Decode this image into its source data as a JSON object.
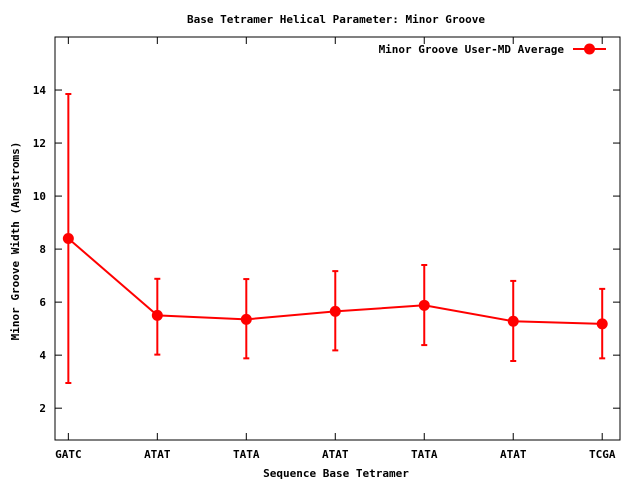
{
  "chart_data": {
    "type": "line",
    "title": "Base Tetramer Helical Parameter: Minor Groove",
    "xlabel": "Sequence Base Tetramer",
    "ylabel": "Minor Groove Width (Angstroms)",
    "categories": [
      "GATC",
      "ATAT",
      "TATA",
      "ATAT",
      "TATA",
      "ATAT",
      "TCGA"
    ],
    "x_range": [
      -0.15,
      6.2
    ],
    "ylim": [
      0.8,
      16.0
    ],
    "y_ticks": [
      2,
      4,
      6,
      8,
      10,
      12,
      14
    ],
    "grid": false,
    "legend_position": "top-right",
    "series": [
      {
        "name": "Minor Groove User-MD Average",
        "color": "#ff0000",
        "values": [
          8.4,
          5.5,
          5.35,
          5.65,
          5.88,
          5.28,
          5.18
        ],
        "error_low": [
          2.95,
          4.02,
          3.88,
          4.18,
          4.38,
          3.78,
          3.88
        ],
        "error_high": [
          13.85,
          6.88,
          6.87,
          7.17,
          7.4,
          6.8,
          6.5
        ]
      }
    ]
  }
}
